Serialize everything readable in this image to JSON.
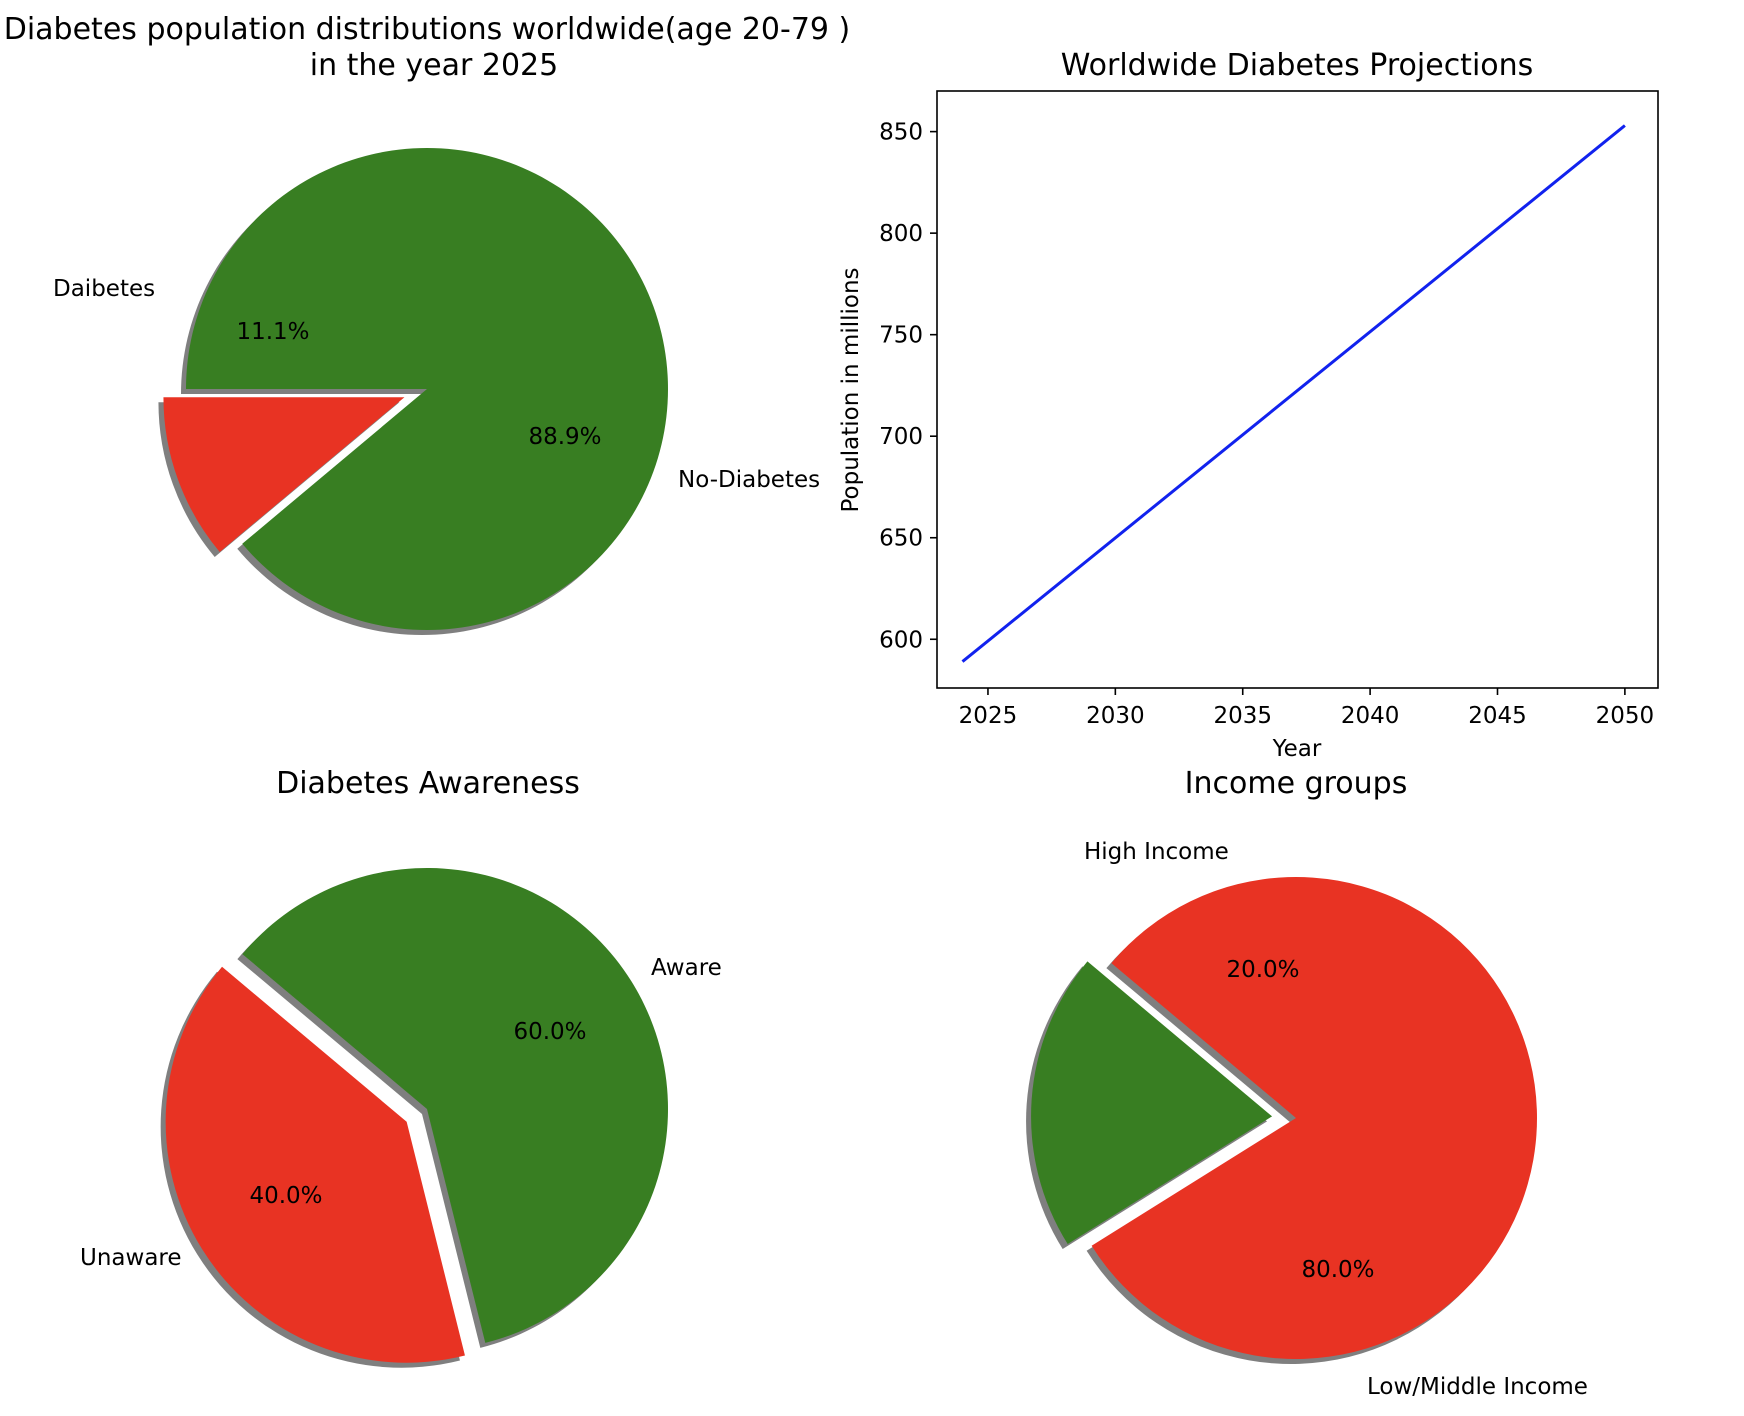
{
  "chart_data": [
    {
      "type": "pie",
      "title": [
        "Diabetes population distributions worldwide(age 20-79 )",
        "in the year 2025"
      ],
      "slices": [
        {
          "label": "Daibetes",
          "value": 11.1,
          "pct_label": "11.1%",
          "color": "#e83323",
          "exploded": true
        },
        {
          "label": "No-Diabetes",
          "value": 88.9,
          "pct_label": "88.9%",
          "color": "#387e22",
          "exploded": false
        }
      ],
      "shadow": true
    },
    {
      "type": "line",
      "title": "Worldwide Diabetes Projections",
      "xlabel": "Year",
      "ylabel": "Population in millions",
      "xlim": [
        2023,
        2051.3
      ],
      "ylim": [
        576,
        870
      ],
      "xticks": [
        2025,
        2030,
        2035,
        2040,
        2045,
        2050
      ],
      "yticks": [
        600,
        650,
        700,
        750,
        800,
        850
      ],
      "series": [
        {
          "x": [
            2024,
            2050
          ],
          "y": [
            589,
            853
          ],
          "color": "#1122ee"
        }
      ],
      "grid": false
    },
    {
      "type": "pie",
      "title": "Diabetes Awareness",
      "slices": [
        {
          "label": "Unaware",
          "value": 40.0,
          "pct_label": "40.0%",
          "color": "#e83323",
          "exploded": true
        },
        {
          "label": "Aware",
          "value": 60.0,
          "pct_label": "60.0%",
          "color": "#387e22",
          "exploded": false
        }
      ],
      "shadow": true
    },
    {
      "type": "pie",
      "title": "Income groups",
      "slices": [
        {
          "label": "High Income",
          "value": 20.0,
          "pct_label": "20.0%",
          "color": "#387e22",
          "exploded": true
        },
        {
          "label": "Low/Middle Income",
          "value": 80.0,
          "pct_label": "80.0%",
          "color": "#e83323",
          "exploded": false
        }
      ],
      "shadow": true
    }
  ]
}
